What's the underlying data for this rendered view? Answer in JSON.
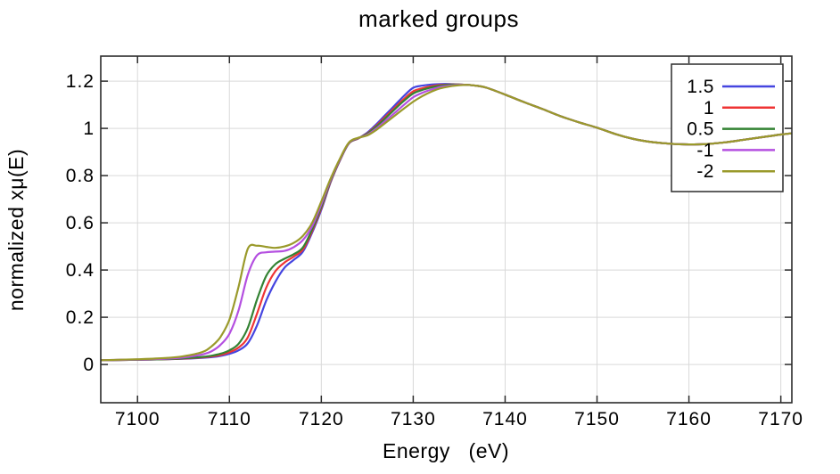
{
  "window": {
    "title": "marked groups"
  },
  "colors": {
    "background": "#ffffff",
    "grid": "#d9d9d9",
    "frame": "#2b2b2b",
    "text": "#000000",
    "series_blue": "#4545e0",
    "series_red": "#ef3434",
    "series_green": "#338233",
    "series_magenta": "#b44fe0",
    "series_olive": "#9a9a2b"
  },
  "legend": {
    "position": "top-right",
    "labels": [
      "1.5",
      "1",
      "0.5",
      "-1",
      "-2"
    ]
  },
  "chart_data": {
    "type": "line",
    "title": "marked groups",
    "xlabel": "Energy   (eV)",
    "ylabel": "normalized xμ(E)",
    "xlim": [
      7096,
      7171.2
    ],
    "ylim": [
      -0.162,
      1.306
    ],
    "grid": true,
    "legend_position": "top-right",
    "xticks": [
      7100,
      7110,
      7120,
      7130,
      7140,
      7150,
      7160,
      7170
    ],
    "yticks": [
      0,
      0.2,
      0.4,
      0.6,
      0.8,
      1,
      1.2
    ],
    "ytick_labels": [
      "0",
      "0.2",
      "0.4",
      "0.6",
      "0.8",
      "1",
      "1.2"
    ],
    "x": [
      7096,
      7100,
      7103,
      7105,
      7107,
      7108,
      7109,
      7110,
      7111,
      7112,
      7113,
      7114,
      7115,
      7116,
      7117,
      7118,
      7119,
      7120,
      7121,
      7122,
      7123,
      7124,
      7125,
      7126,
      7127,
      7128,
      7129,
      7130,
      7131,
      7132,
      7133,
      7134,
      7135,
      7136,
      7137,
      7138,
      7140,
      7142,
      7144,
      7146,
      7148,
      7150,
      7152,
      7154,
      7156,
      7158,
      7160,
      7162,
      7164,
      7166,
      7168,
      7170,
      7171.2
    ],
    "series": [
      {
        "name": "1.5",
        "color": "#4545e0",
        "values": [
          0.018,
          0.02,
          0.022,
          0.024,
          0.028,
          0.031,
          0.036,
          0.045,
          0.06,
          0.09,
          0.165,
          0.27,
          0.35,
          0.41,
          0.443,
          0.478,
          0.558,
          0.655,
          0.77,
          0.862,
          0.936,
          0.957,
          0.982,
          1.018,
          1.058,
          1.098,
          1.138,
          1.172,
          1.181,
          1.186,
          1.188,
          1.188,
          1.186,
          1.184,
          1.18,
          1.172,
          1.143,
          1.112,
          1.083,
          1.052,
          1.026,
          1.003,
          0.976,
          0.955,
          0.942,
          0.935,
          0.932,
          0.934,
          0.941,
          0.952,
          0.963,
          0.974,
          0.979
        ]
      },
      {
        "name": "1",
        "color": "#ef3434",
        "values": [
          0.018,
          0.02,
          0.022,
          0.025,
          0.03,
          0.034,
          0.04,
          0.052,
          0.072,
          0.115,
          0.215,
          0.325,
          0.395,
          0.432,
          0.457,
          0.487,
          0.565,
          0.662,
          0.773,
          0.864,
          0.937,
          0.957,
          0.979,
          1.012,
          1.05,
          1.088,
          1.125,
          1.157,
          1.17,
          1.179,
          1.184,
          1.186,
          1.186,
          1.184,
          1.18,
          1.172,
          1.143,
          1.112,
          1.083,
          1.052,
          1.026,
          1.003,
          0.976,
          0.955,
          0.942,
          0.935,
          0.932,
          0.934,
          0.941,
          0.952,
          0.963,
          0.974,
          0.979
        ]
      },
      {
        "name": "0.5",
        "color": "#338233",
        "values": [
          0.018,
          0.02,
          0.022,
          0.026,
          0.032,
          0.037,
          0.045,
          0.06,
          0.088,
          0.155,
          0.275,
          0.375,
          0.425,
          0.448,
          0.467,
          0.496,
          0.572,
          0.668,
          0.776,
          0.866,
          0.938,
          0.958,
          0.977,
          1.008,
          1.044,
          1.081,
          1.117,
          1.148,
          1.163,
          1.174,
          1.181,
          1.185,
          1.186,
          1.184,
          1.18,
          1.172,
          1.143,
          1.112,
          1.083,
          1.052,
          1.026,
          1.003,
          0.976,
          0.955,
          0.942,
          0.935,
          0.932,
          0.934,
          0.941,
          0.952,
          0.963,
          0.974,
          0.979
        ]
      },
      {
        "name": "-1",
        "color": "#b44fe0",
        "values": [
          0.018,
          0.021,
          0.024,
          0.03,
          0.042,
          0.055,
          0.082,
          0.13,
          0.23,
          0.38,
          0.462,
          0.475,
          0.478,
          0.481,
          0.497,
          0.527,
          0.585,
          0.678,
          0.781,
          0.868,
          0.939,
          0.959,
          0.973,
          1.0,
          1.033,
          1.066,
          1.1,
          1.132,
          1.151,
          1.165,
          1.176,
          1.181,
          1.185,
          1.184,
          1.18,
          1.172,
          1.143,
          1.112,
          1.083,
          1.052,
          1.026,
          1.003,
          0.976,
          0.955,
          0.942,
          0.935,
          0.932,
          0.934,
          0.941,
          0.952,
          0.963,
          0.974,
          0.979
        ]
      },
      {
        "name": "-2",
        "color": "#9a9a2b",
        "values": [
          0.018,
          0.022,
          0.027,
          0.035,
          0.052,
          0.075,
          0.115,
          0.19,
          0.33,
          0.49,
          0.503,
          0.498,
          0.494,
          0.5,
          0.515,
          0.545,
          0.6,
          0.69,
          0.786,
          0.87,
          0.94,
          0.96,
          0.97,
          0.994,
          1.024,
          1.054,
          1.084,
          1.113,
          1.137,
          1.156,
          1.17,
          1.178,
          1.183,
          1.184,
          1.18,
          1.172,
          1.143,
          1.112,
          1.083,
          1.052,
          1.026,
          1.003,
          0.976,
          0.955,
          0.942,
          0.935,
          0.932,
          0.934,
          0.941,
          0.952,
          0.963,
          0.974,
          0.979
        ]
      }
    ]
  }
}
